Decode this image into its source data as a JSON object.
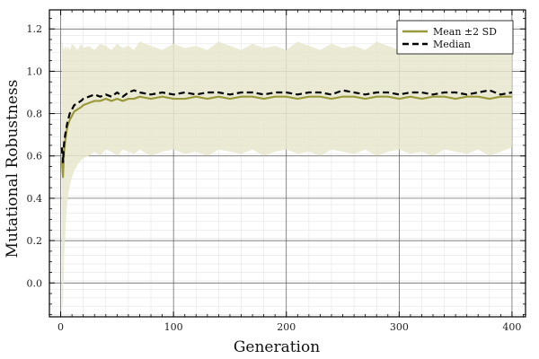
{
  "chart_data": {
    "type": "line",
    "title": "",
    "xlabel": "Generation",
    "ylabel": "Mutational Robustness",
    "xlim": [
      -10,
      412
    ],
    "ylim": [
      -0.16,
      1.29
    ],
    "xticks": [
      0,
      100,
      200,
      300,
      400
    ],
    "xtick_labels": [
      "0",
      "100",
      "200",
      "300",
      "400"
    ],
    "yticks": [
      0.0,
      0.2,
      0.4,
      0.6,
      0.8,
      1.0,
      1.2
    ],
    "ytick_labels": [
      "0.0",
      "0.2",
      "0.4",
      "0.6",
      "0.8",
      "1.0",
      "1.2"
    ],
    "grid": true,
    "legend_position": "top-right",
    "colors": {
      "mean": "#9a9a3c",
      "band": "#e8e6cc",
      "median": "#000000"
    },
    "series": [
      {
        "name": "Mean ±2 SD",
        "style": "solid-with-band",
        "x": [
          1,
          2,
          3,
          4,
          5,
          6,
          8,
          10,
          12,
          15,
          18,
          20,
          25,
          30,
          35,
          40,
          45,
          50,
          55,
          60,
          65,
          70,
          80,
          90,
          100,
          110,
          120,
          130,
          140,
          150,
          160,
          170,
          180,
          190,
          200,
          210,
          220,
          230,
          240,
          250,
          260,
          270,
          280,
          290,
          300,
          310,
          320,
          330,
          340,
          350,
          360,
          370,
          380,
          390,
          400
        ],
        "mean": [
          0.58,
          0.5,
          0.62,
          0.67,
          0.71,
          0.74,
          0.77,
          0.79,
          0.81,
          0.82,
          0.83,
          0.84,
          0.85,
          0.86,
          0.86,
          0.87,
          0.86,
          0.87,
          0.86,
          0.87,
          0.87,
          0.88,
          0.87,
          0.88,
          0.87,
          0.87,
          0.88,
          0.87,
          0.88,
          0.87,
          0.88,
          0.88,
          0.87,
          0.88,
          0.88,
          0.87,
          0.88,
          0.88,
          0.87,
          0.88,
          0.88,
          0.87,
          0.88,
          0.88,
          0.87,
          0.88,
          0.87,
          0.88,
          0.88,
          0.87,
          0.88,
          0.88,
          0.87,
          0.88,
          0.88
        ],
        "lower": [
          -0.12,
          -0.1,
          0.12,
          0.22,
          0.32,
          0.4,
          0.46,
          0.5,
          0.53,
          0.56,
          0.58,
          0.59,
          0.6,
          0.62,
          0.6,
          0.63,
          0.62,
          0.6,
          0.63,
          0.62,
          0.61,
          0.63,
          0.6,
          0.62,
          0.63,
          0.61,
          0.62,
          0.6,
          0.63,
          0.62,
          0.61,
          0.63,
          0.6,
          0.62,
          0.63,
          0.61,
          0.62,
          0.6,
          0.63,
          0.62,
          0.61,
          0.63,
          0.6,
          0.62,
          0.63,
          0.61,
          0.62,
          0.6,
          0.63,
          0.62,
          0.61,
          0.63,
          0.6,
          0.62,
          0.64
        ],
        "upper": [
          1.15,
          1.12,
          1.1,
          1.12,
          1.1,
          1.12,
          1.1,
          1.13,
          1.12,
          1.1,
          1.13,
          1.11,
          1.12,
          1.1,
          1.13,
          1.12,
          1.1,
          1.13,
          1.11,
          1.12,
          1.1,
          1.14,
          1.12,
          1.1,
          1.13,
          1.11,
          1.12,
          1.1,
          1.14,
          1.12,
          1.1,
          1.13,
          1.11,
          1.12,
          1.1,
          1.14,
          1.12,
          1.1,
          1.13,
          1.11,
          1.12,
          1.1,
          1.14,
          1.12,
          1.1,
          1.13,
          1.11,
          1.12,
          1.1,
          1.13,
          1.12,
          1.1,
          1.13,
          1.11,
          1.12
        ]
      },
      {
        "name": "Median",
        "style": "dashed",
        "x": [
          1,
          2,
          3,
          4,
          5,
          6,
          8,
          10,
          12,
          15,
          18,
          20,
          25,
          30,
          35,
          40,
          45,
          50,
          55,
          60,
          65,
          70,
          80,
          90,
          100,
          110,
          120,
          130,
          140,
          150,
          160,
          170,
          180,
          190,
          200,
          210,
          220,
          230,
          240,
          250,
          260,
          270,
          280,
          290,
          300,
          310,
          320,
          330,
          340,
          350,
          360,
          370,
          380,
          390,
          400
        ],
        "values": [
          0.64,
          0.57,
          0.66,
          0.7,
          0.73,
          0.76,
          0.8,
          0.82,
          0.84,
          0.85,
          0.86,
          0.87,
          0.88,
          0.89,
          0.88,
          0.89,
          0.88,
          0.9,
          0.88,
          0.9,
          0.91,
          0.9,
          0.89,
          0.9,
          0.89,
          0.9,
          0.89,
          0.9,
          0.9,
          0.89,
          0.9,
          0.9,
          0.89,
          0.9,
          0.9,
          0.89,
          0.9,
          0.9,
          0.89,
          0.91,
          0.9,
          0.89,
          0.9,
          0.9,
          0.89,
          0.9,
          0.9,
          0.89,
          0.9,
          0.9,
          0.89,
          0.9,
          0.91,
          0.89,
          0.9
        ]
      }
    ]
  }
}
